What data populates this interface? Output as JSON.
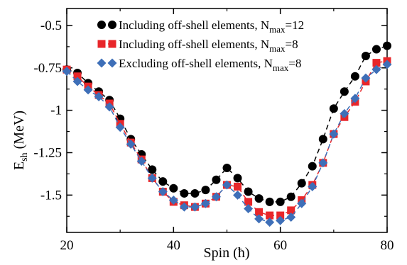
{
  "chart_data": {
    "type": "line",
    "xlabel": "Spin (ħ)",
    "ylabel_main": "E",
    "ylabel_sub": "sh",
    "ylabel_unit": " (MeV)",
    "xlim": [
      20,
      80
    ],
    "ylim": [
      -1.72,
      -0.4
    ],
    "xticks": [
      20,
      40,
      60,
      80
    ],
    "xtick_labels": [
      "20",
      "40",
      "60",
      "80"
    ],
    "yticks": [
      -0.5,
      -0.75,
      -1,
      -1.25,
      -1.5
    ],
    "ytick_labels": [
      "-0.5",
      "-0.75",
      "-1",
      "-1.25",
      "-1.5"
    ],
    "grid": false,
    "legend_position": "top-right",
    "x": [
      20,
      22,
      24,
      26,
      28,
      30,
      32,
      34,
      36,
      38,
      40,
      42,
      44,
      46,
      48,
      50,
      52,
      54,
      56,
      58,
      60,
      62,
      64,
      66,
      68,
      70,
      72,
      74,
      76,
      78,
      80
    ],
    "series": [
      {
        "legend_prefix": "Including off-shell elements, N",
        "legend_sub": "max",
        "legend_suffix": "=12",
        "color": "#000000",
        "marker": "circle",
        "values": [
          -0.76,
          -0.78,
          -0.84,
          -0.89,
          -0.94,
          -1.05,
          -1.17,
          -1.26,
          -1.35,
          -1.42,
          -1.46,
          -1.49,
          -1.49,
          -1.47,
          -1.41,
          -1.34,
          -1.4,
          -1.48,
          -1.52,
          -1.54,
          -1.54,
          -1.51,
          -1.43,
          -1.33,
          -1.17,
          -0.99,
          -0.89,
          -0.8,
          -0.68,
          -0.64,
          -0.62
        ]
      },
      {
        "legend_prefix": "Including off-shell elements, N",
        "legend_sub": "max",
        "legend_suffix": "=8",
        "color": "#e8262a",
        "marker": "square",
        "values": [
          -0.76,
          -0.8,
          -0.86,
          -0.91,
          -0.96,
          -1.08,
          -1.19,
          -1.29,
          -1.4,
          -1.48,
          -1.54,
          -1.56,
          -1.57,
          -1.55,
          -1.51,
          -1.44,
          -1.45,
          -1.54,
          -1.6,
          -1.62,
          -1.62,
          -1.59,
          -1.53,
          -1.44,
          -1.31,
          -1.14,
          -1.04,
          -0.95,
          -0.83,
          -0.72,
          -0.71
        ]
      },
      {
        "legend_prefix": "Excluding off-shell elements, N",
        "legend_sub": "max",
        "legend_suffix": "=8",
        "color": "#3e6fb8",
        "marker": "diamond",
        "values": [
          -0.77,
          -0.83,
          -0.88,
          -0.92,
          -0.98,
          -1.1,
          -1.2,
          -1.3,
          -1.4,
          -1.48,
          -1.53,
          -1.57,
          -1.57,
          -1.55,
          -1.51,
          -1.44,
          -1.5,
          -1.58,
          -1.64,
          -1.66,
          -1.65,
          -1.63,
          -1.55,
          -1.45,
          -1.31,
          -1.14,
          -1.02,
          -0.93,
          -0.81,
          -0.76,
          -0.73
        ]
      }
    ]
  }
}
